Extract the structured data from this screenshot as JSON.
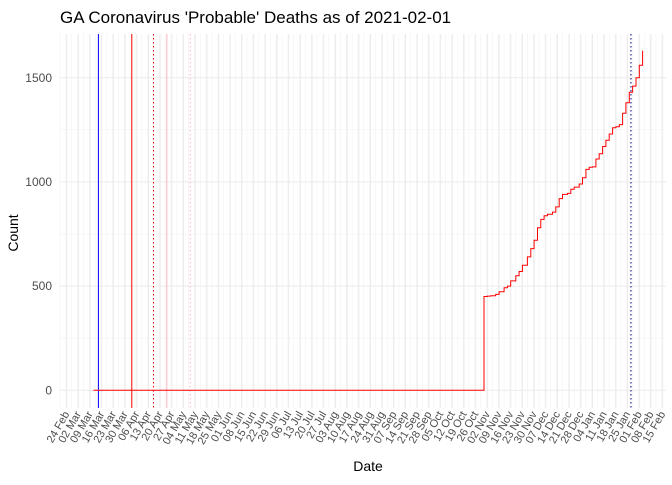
{
  "chart_data": {
    "type": "line",
    "title": "GA Coronavirus 'Probable' Deaths as of 2021-02-01",
    "xlabel": "Date",
    "ylabel": "Count",
    "x_range": [
      "2020-02-20",
      "2021-02-17"
    ],
    "ylim": [
      -85,
      1710
    ],
    "y_ticks": [
      0,
      500,
      1000,
      1500
    ],
    "grid": true,
    "x_tick_labels": [
      {
        "date": "2020-02-24",
        "label": "24 Feb"
      },
      {
        "date": "2020-03-02",
        "label": "02 Mar"
      },
      {
        "date": "2020-03-09",
        "label": "09 Mar"
      },
      {
        "date": "2020-03-16",
        "label": "16 Mar"
      },
      {
        "date": "2020-03-23",
        "label": "23 Mar"
      },
      {
        "date": "2020-03-30",
        "label": "30 Mar"
      },
      {
        "date": "2020-04-06",
        "label": "06 Apr"
      },
      {
        "date": "2020-04-13",
        "label": "13 Apr"
      },
      {
        "date": "2020-04-20",
        "label": "20 Apr"
      },
      {
        "date": "2020-04-27",
        "label": "27 Apr"
      },
      {
        "date": "2020-05-04",
        "label": "04 May"
      },
      {
        "date": "2020-05-11",
        "label": "11 May"
      },
      {
        "date": "2020-05-18",
        "label": "18 May"
      },
      {
        "date": "2020-05-25",
        "label": "25 May"
      },
      {
        "date": "2020-06-01",
        "label": "01 Jun"
      },
      {
        "date": "2020-06-08",
        "label": "08 Jun"
      },
      {
        "date": "2020-06-15",
        "label": "15 Jun"
      },
      {
        "date": "2020-06-22",
        "label": "22 Jun"
      },
      {
        "date": "2020-06-29",
        "label": "29 Jun"
      },
      {
        "date": "2020-07-06",
        "label": "06 Jul"
      },
      {
        "date": "2020-07-13",
        "label": "13 Jul"
      },
      {
        "date": "2020-07-20",
        "label": "20 Jul"
      },
      {
        "date": "2020-07-27",
        "label": "27 Jul"
      },
      {
        "date": "2020-08-03",
        "label": "03 Aug"
      },
      {
        "date": "2020-08-10",
        "label": "10 Aug"
      },
      {
        "date": "2020-08-17",
        "label": "17 Aug"
      },
      {
        "date": "2020-08-24",
        "label": "24 Aug"
      },
      {
        "date": "2020-08-31",
        "label": "31 Aug"
      },
      {
        "date": "2020-09-07",
        "label": "07 Sep"
      },
      {
        "date": "2020-09-14",
        "label": "14 Sep"
      },
      {
        "date": "2020-09-21",
        "label": "21 Sep"
      },
      {
        "date": "2020-09-28",
        "label": "28 Sep"
      },
      {
        "date": "2020-10-05",
        "label": "05 Oct"
      },
      {
        "date": "2020-10-12",
        "label": "12 Oct"
      },
      {
        "date": "2020-10-19",
        "label": "19 Oct"
      },
      {
        "date": "2020-10-26",
        "label": "26 Oct"
      },
      {
        "date": "2020-11-02",
        "label": "02 Nov"
      },
      {
        "date": "2020-11-09",
        "label": "09 Nov"
      },
      {
        "date": "2020-11-16",
        "label": "16 Nov"
      },
      {
        "date": "2020-11-23",
        "label": "23 Nov"
      },
      {
        "date": "2020-11-30",
        "label": "30 Nov"
      },
      {
        "date": "2020-12-07",
        "label": "07 Dec"
      },
      {
        "date": "2020-12-14",
        "label": "14 Dec"
      },
      {
        "date": "2020-12-21",
        "label": "21 Dec"
      },
      {
        "date": "2020-12-28",
        "label": "28 Dec"
      },
      {
        "date": "2021-01-04",
        "label": "04 Jan"
      },
      {
        "date": "2021-01-11",
        "label": "11 Jan"
      },
      {
        "date": "2021-01-18",
        "label": "18 Jan"
      },
      {
        "date": "2021-01-25",
        "label": "25 Jan"
      },
      {
        "date": "2021-02-01",
        "label": "01 Feb"
      },
      {
        "date": "2021-02-08",
        "label": "08 Feb"
      },
      {
        "date": "2021-02-15",
        "label": "15 Feb"
      }
    ],
    "vertical_lines": [
      {
        "date": "2020-03-14",
        "color": "#0000ff",
        "style": "solid"
      },
      {
        "date": "2020-04-03",
        "color": "#ff0000",
        "style": "solid"
      },
      {
        "date": "2020-04-16",
        "color": "#ff0000",
        "style": "dotted"
      },
      {
        "date": "2020-04-24",
        "color": "#ffb6c1",
        "style": "solid"
      },
      {
        "date": "2020-05-08",
        "color": "#ffb6c1",
        "style": "dotted"
      },
      {
        "date": "2021-01-27",
        "color": "#000080",
        "style": "dotted"
      }
    ],
    "series": [
      {
        "color": "#ff0000",
        "points": [
          {
            "x": "2020-03-11",
            "y": 0
          },
          {
            "x": "2020-10-30",
            "y": 0
          },
          {
            "x": "2020-10-31",
            "y": 450
          },
          {
            "x": "2020-11-02",
            "y": 452
          },
          {
            "x": "2020-11-04",
            "y": 454
          },
          {
            "x": "2020-11-07",
            "y": 460
          },
          {
            "x": "2020-11-09",
            "y": 473
          },
          {
            "x": "2020-11-12",
            "y": 492
          },
          {
            "x": "2020-11-14",
            "y": 500
          },
          {
            "x": "2020-11-16",
            "y": 525
          },
          {
            "x": "2020-11-19",
            "y": 550
          },
          {
            "x": "2020-11-21",
            "y": 570
          },
          {
            "x": "2020-11-23",
            "y": 600
          },
          {
            "x": "2020-11-26",
            "y": 640
          },
          {
            "x": "2020-11-28",
            "y": 680
          },
          {
            "x": "2020-11-30",
            "y": 720
          },
          {
            "x": "2020-12-02",
            "y": 780
          },
          {
            "x": "2020-12-04",
            "y": 820
          },
          {
            "x": "2020-12-06",
            "y": 838
          },
          {
            "x": "2020-12-08",
            "y": 845
          },
          {
            "x": "2020-12-11",
            "y": 855
          },
          {
            "x": "2020-12-13",
            "y": 880
          },
          {
            "x": "2020-12-15",
            "y": 920
          },
          {
            "x": "2020-12-17",
            "y": 940
          },
          {
            "x": "2020-12-20",
            "y": 945
          },
          {
            "x": "2020-12-22",
            "y": 965
          },
          {
            "x": "2020-12-24",
            "y": 975
          },
          {
            "x": "2020-12-27",
            "y": 990
          },
          {
            "x": "2020-12-29",
            "y": 1020
          },
          {
            "x": "2020-12-31",
            "y": 1060
          },
          {
            "x": "2021-01-02",
            "y": 1070
          },
          {
            "x": "2021-01-04",
            "y": 1072
          },
          {
            "x": "2021-01-06",
            "y": 1110
          },
          {
            "x": "2021-01-08",
            "y": 1135
          },
          {
            "x": "2021-01-10",
            "y": 1170
          },
          {
            "x": "2021-01-12",
            "y": 1200
          },
          {
            "x": "2021-01-14",
            "y": 1230
          },
          {
            "x": "2021-01-16",
            "y": 1260
          },
          {
            "x": "2021-01-18",
            "y": 1265
          },
          {
            "x": "2021-01-20",
            "y": 1275
          },
          {
            "x": "2021-01-22",
            "y": 1330
          },
          {
            "x": "2021-01-24",
            "y": 1380
          },
          {
            "x": "2021-01-26",
            "y": 1430
          },
          {
            "x": "2021-01-28",
            "y": 1460
          },
          {
            "x": "2021-01-30",
            "y": 1500
          },
          {
            "x": "2021-02-01",
            "y": 1560
          },
          {
            "x": "2021-02-03",
            "y": 1630
          }
        ]
      }
    ]
  }
}
